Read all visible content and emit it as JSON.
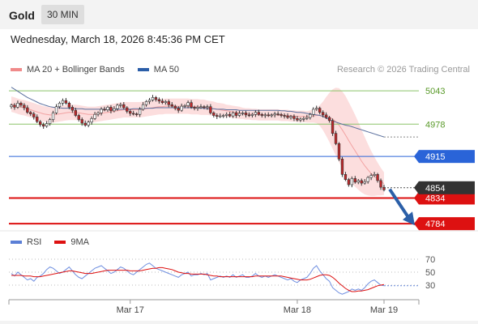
{
  "header": {
    "symbol": "Gold",
    "timeframe": "30 MIN"
  },
  "datetime": "Wednesday, March 18, 2026 8:45:36 PM CET",
  "credit": "Research © 2026 Trading Central",
  "legend": [
    {
      "label": "MA 20 + Bollinger Bands",
      "color": "#f08a8a"
    },
    {
      "label": "MA 50",
      "color": "#2b5ea8"
    }
  ],
  "rsi_legend": [
    {
      "label": "RSI",
      "color": "#5b7fd6"
    },
    {
      "label": "9MA",
      "color": "#dd1111"
    }
  ],
  "colors": {
    "up": "#ffffff",
    "down": "#c0282a",
    "wick": "#333333",
    "resistance": "#8cc46a",
    "pivot": "#2a64d8",
    "support": "#dd1111",
    "last": "#333333",
    "arrow": "#2b5fa8"
  },
  "chart_data": [
    {
      "type": "candlestick",
      "x_ticks": [
        "Mar 17",
        "Mar 18",
        "Mar 19"
      ],
      "ylim": [
        4770,
        5070
      ],
      "levels": [
        {
          "value": 5043,
          "label": "5043",
          "kind": "resistance"
        },
        {
          "value": 4978,
          "label": "4978",
          "kind": "resistance"
        },
        {
          "value": 4915,
          "label": "4915",
          "kind": "pivot"
        },
        {
          "value": 4834,
          "label": "4834",
          "kind": "support"
        },
        {
          "value": 4784,
          "label": "4784",
          "kind": "support"
        }
      ],
      "last_price": {
        "value": 4854,
        "label": "4854"
      },
      "forecast_arrow": {
        "from": 4851,
        "to": 4787
      },
      "close": [
        5015,
        5011,
        5019,
        5015,
        5010,
        5001,
        4998,
        4992,
        4983,
        4977,
        4974,
        4979,
        4987,
        5000,
        5012,
        5019,
        5024,
        5019,
        5011,
        5005,
        4995,
        4987,
        4980,
        4976,
        4982,
        4989,
        4997,
        5000,
        5007,
        5006,
        5011,
        5004,
        5008,
        5015,
        5016,
        5010,
        5003,
        4999,
        4998,
        4997,
        5007,
        5016,
        5022,
        5025,
        5030,
        5026,
        5023,
        5020,
        5022,
        5016,
        5013,
        5009,
        5005,
        5013,
        5014,
        5020,
        5011,
        5009,
        5011,
        5012,
        5011,
        5012,
        5000,
        4995,
        4993,
        4994,
        4995,
        4997,
        4994,
        5000,
        4995,
        4999,
        5000,
        4996,
        4995,
        4997,
        5001,
        4997,
        4995,
        4996,
        4995,
        4996,
        4998,
        4997,
        4995,
        4994,
        4991,
        4993,
        4989,
        4986,
        4988,
        4989,
        4991,
        4997,
        5007,
        5009,
        5001,
        4996,
        4991,
        4985,
        4960,
        4940,
        4910,
        4880,
        4870,
        4860,
        4872,
        4865,
        4868,
        4863,
        4866,
        4874,
        4878,
        4880,
        4868,
        4855,
        4850
      ],
      "ma20": [
        5017,
        5015,
        5013,
        5011,
        5010,
        5008,
        5006,
        5004,
        5002,
        5000,
        4998,
        4997,
        4996,
        4996,
        4997,
        4998,
        4999,
        5000,
        5001,
        5001,
        5001,
        5000,
        4999,
        4998,
        4997,
        4997,
        4997,
        4998,
        4999,
        5000,
        5001,
        5002,
        5003,
        5004,
        5005,
        5006,
        5006,
        5006,
        5006,
        5006,
        5006,
        5007,
        5008,
        5009,
        5010,
        5011,
        5012,
        5012,
        5013,
        5013,
        5013,
        5013,
        5013,
        5013,
        5013,
        5013,
        5012,
        5012,
        5012,
        5011,
        5011,
        5010,
        5009,
        5008,
        5007,
        5006,
        5005,
        5004,
        5003,
        5002,
        5001,
        5000,
        4999,
        4998,
        4998,
        4997,
        4997,
        4996,
        4996,
        4996,
        4996,
        4996,
        4996,
        4996,
        4995,
        4995,
        4995,
        4994,
        4994,
        4993,
        4993,
        4993,
        4992,
        4993,
        4994,
        4995,
        4995,
        4994,
        4993,
        4991,
        4988,
        4983,
        4976,
        4967,
        4957,
        4946,
        4936,
        4926,
        4916,
        4906,
        4897,
        4889,
        4882,
        4876,
        4871,
        4866,
        4862
      ],
      "bb_width": [
        15,
        15,
        15,
        15,
        15,
        15,
        15,
        15,
        15,
        15,
        15,
        15,
        15,
        15,
        15,
        15,
        15,
        15,
        15,
        15,
        15,
        15,
        15,
        15,
        15,
        15,
        15,
        15,
        15,
        15,
        15,
        15,
        15,
        15,
        15,
        15,
        15,
        15,
        15,
        15,
        15,
        15,
        15,
        15,
        15,
        15,
        15,
        15,
        15,
        15,
        15,
        15,
        15,
        15,
        15,
        15,
        15,
        15,
        15,
        15,
        15,
        14,
        14,
        14,
        13,
        13,
        13,
        12,
        12,
        12,
        12,
        12,
        11,
        11,
        11,
        11,
        11,
        11,
        11,
        11,
        11,
        11,
        11,
        11,
        11,
        11,
        11,
        11,
        11,
        11,
        11,
        11,
        11,
        12,
        13,
        15,
        20,
        28,
        38,
        48,
        58,
        66,
        72,
        75,
        76,
        75,
        73,
        70,
        66,
        61,
        56,
        50,
        44,
        38,
        32,
        27,
        22
      ],
      "ma50": [
        5050,
        5046,
        5042,
        5038,
        5034,
        5030,
        5027,
        5024,
        5021,
        5018,
        5016,
        5014,
        5012,
        5011,
        5010,
        5010,
        5009,
        5009,
        5009,
        5009,
        5008,
        5008,
        5008,
        5007,
        5007,
        5007,
        5007,
        5007,
        5007,
        5007,
        5007,
        5007,
        5007,
        5007,
        5007,
        5007,
        5007,
        5007,
        5008,
        5008,
        5008,
        5008,
        5009,
        5009,
        5009,
        5010,
        5010,
        5010,
        5010,
        5010,
        5010,
        5010,
        5010,
        5010,
        5010,
        5010,
        5010,
        5010,
        5009,
        5009,
        5009,
        5008,
        5008,
        5008,
        5007,
        5007,
        5007,
        5006,
        5006,
        5006,
        5006,
        5005,
        5005,
        5005,
        5005,
        5005,
        5005,
        5005,
        5005,
        5005,
        5005,
        5005,
        5005,
        5005,
        5004,
        5004,
        5003,
        5003,
        5002,
        5001,
        5001,
        5000,
        4999,
        4998,
        4997,
        4996,
        4995,
        4993,
        4990,
        4987,
        4984,
        4982,
        4980,
        4978,
        4976,
        4975,
        4973,
        4971,
        4969,
        4967,
        4965,
        4963,
        4961,
        4959,
        4957,
        4955,
        4953
      ]
    },
    {
      "type": "line",
      "name": "RSI",
      "y_ticks": [
        30,
        50,
        70
      ],
      "ylim": [
        10,
        85
      ],
      "rsi": [
        48,
        44,
        50,
        46,
        42,
        38,
        40,
        36,
        42,
        44,
        48,
        54,
        58,
        56,
        52,
        48,
        50,
        54,
        58,
        52,
        46,
        42,
        40,
        44,
        48,
        52,
        56,
        58,
        60,
        56,
        52,
        48,
        50,
        54,
        58,
        56,
        52,
        48,
        46,
        50,
        54,
        58,
        62,
        64,
        60,
        56,
        54,
        52,
        50,
        48,
        46,
        44,
        42,
        46,
        48,
        50,
        44,
        46,
        46,
        48,
        46,
        48,
        38,
        40,
        42,
        44,
        42,
        44,
        42,
        46,
        42,
        44,
        46,
        42,
        42,
        44,
        48,
        44,
        42,
        44,
        42,
        44,
        46,
        44,
        42,
        40,
        38,
        40,
        36,
        34,
        38,
        40,
        42,
        48,
        56,
        60,
        52,
        46,
        40,
        36,
        26,
        22,
        18,
        16,
        18,
        20,
        24,
        22,
        24,
        22,
        26,
        32,
        36,
        38,
        34,
        30,
        29
      ],
      "ma9": [
        45,
        45,
        45,
        45,
        44,
        44,
        44,
        43,
        43,
        43,
        44,
        45,
        46,
        47,
        48,
        49,
        50,
        51,
        52,
        52,
        51,
        50,
        49,
        48,
        48,
        48,
        49,
        50,
        51,
        52,
        53,
        53,
        53,
        53,
        53,
        53,
        53,
        52,
        52,
        52,
        52,
        53,
        54,
        55,
        56,
        56,
        57,
        57,
        56,
        55,
        54,
        52,
        50,
        49,
        48,
        48,
        47,
        47,
        47,
        47,
        47,
        46,
        45,
        44,
        44,
        43,
        43,
        43,
        43,
        43,
        43,
        43,
        43,
        43,
        43,
        43,
        44,
        44,
        44,
        44,
        44,
        44,
        44,
        44,
        44,
        43,
        42,
        41,
        40,
        39,
        38,
        38,
        38,
        39,
        41,
        43,
        45,
        46,
        46,
        45,
        42,
        38,
        33,
        29,
        25,
        22,
        20,
        20,
        21,
        21,
        22,
        23,
        25,
        27,
        29,
        30,
        31
      ]
    }
  ]
}
